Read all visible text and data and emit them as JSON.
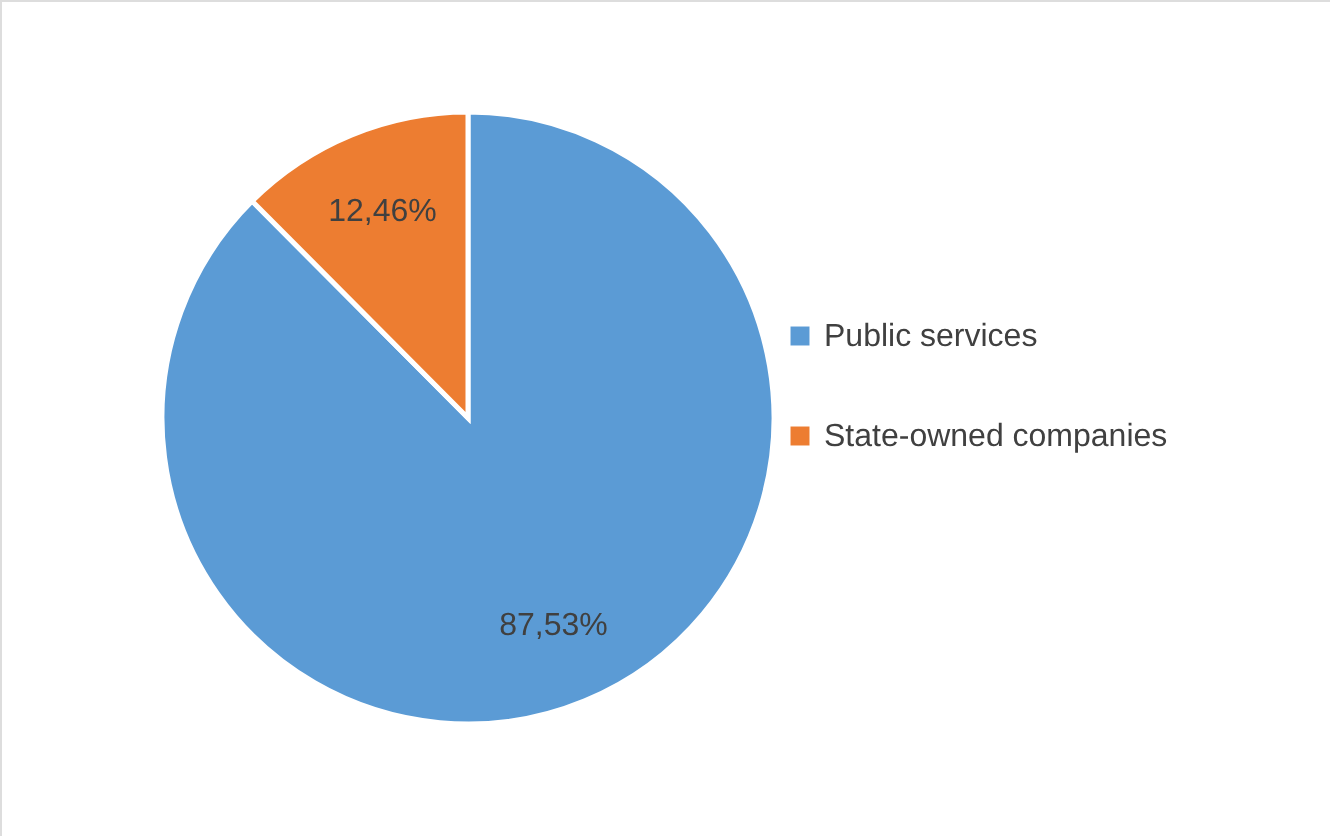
{
  "chart_data": {
    "type": "pie",
    "categories": [
      "Public services",
      "State-owned companies"
    ],
    "values": [
      87.53,
      12.46
    ],
    "colors": [
      "#5b9bd5",
      "#ed7d31"
    ],
    "value_labels": [
      "87,53%",
      "12,46%"
    ],
    "legend": "right"
  }
}
